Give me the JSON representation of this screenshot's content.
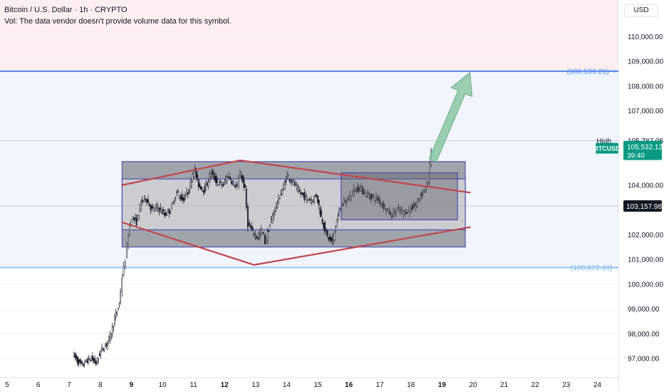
{
  "header": {
    "title": "Bitcoin / U.S. Dollar · 1h · CRYPTO",
    "volume_note": "Vol: The data vendor doesn't provide volume data for this symbol."
  },
  "currency_label": "USD",
  "colors": {
    "up": "#131722",
    "down": "#131722",
    "target_line": "#5b8def",
    "support_line": "#9ecdf2",
    "diamond": "#c1454f",
    "box_fill": "#5d6068",
    "box_border": "#3c3fa8",
    "arrow": "#8bc7a3",
    "price_tag": "#089981",
    "upper_zone": "#fdeff0",
    "lower_zone": "#f1f5fd"
  },
  "chart_data": {
    "type": "candlestick",
    "symbol": "BTCUSD",
    "ylim": [
      96500,
      111500
    ],
    "y_ticks": [
      "110,000.00",
      "109,000.00",
      "108,000.00",
      "107,000.00",
      "104,000.00",
      "102,000.00",
      "101,000.00",
      "100,000.00",
      "99,000.00",
      "98,000.00",
      "97,000.00"
    ],
    "x_ticks": [
      "5",
      "6",
      "7",
      "8",
      "9",
      "10",
      "11",
      "12",
      "13",
      "14",
      "15",
      "16",
      "17",
      "18",
      "19",
      "20",
      "21",
      "22",
      "23",
      "24"
    ],
    "x_range_days": [
      5,
      24.4
    ],
    "levels": [
      {
        "label": "(108,599.21)",
        "value": 108599.21,
        "kind": "target"
      },
      {
        "label": "(100,672.19)",
        "value": 100672.19,
        "kind": "support"
      }
    ],
    "price_labels": {
      "high_label": "High",
      "high_value": "105,787.05",
      "symbol_tag": "BTCUSD",
      "last_price": "105,532.12",
      "countdown": "39:40",
      "crosshair_price": "103,157.98"
    },
    "price_path": [
      [
        7.15,
        97200
      ],
      [
        7.3,
        96900
      ],
      [
        7.45,
        96700
      ],
      [
        7.6,
        96900
      ],
      [
        7.75,
        97000
      ],
      [
        7.9,
        96800
      ],
      [
        8.05,
        97300
      ],
      [
        8.2,
        97500
      ],
      [
        8.35,
        97900
      ],
      [
        8.5,
        98600
      ],
      [
        8.65,
        99200
      ],
      [
        8.75,
        100300
      ],
      [
        8.85,
        101000
      ],
      [
        8.95,
        102000
      ],
      [
        9.05,
        102700
      ],
      [
        9.2,
        102500
      ],
      [
        9.35,
        103300
      ],
      [
        9.5,
        103500
      ],
      [
        9.7,
        103000
      ],
      [
        9.9,
        103100
      ],
      [
        10.1,
        102800
      ],
      [
        10.3,
        103000
      ],
      [
        10.5,
        103700
      ],
      [
        10.7,
        103400
      ],
      [
        10.9,
        103800
      ],
      [
        11.05,
        104700
      ],
      [
        11.2,
        104000
      ],
      [
        11.4,
        103800
      ],
      [
        11.6,
        104500
      ],
      [
        11.8,
        104100
      ],
      [
        12.0,
        104000
      ],
      [
        12.15,
        104400
      ],
      [
        12.3,
        104100
      ],
      [
        12.45,
        103900
      ],
      [
        12.55,
        104500
      ],
      [
        12.7,
        103800
      ],
      [
        12.8,
        102400
      ],
      [
        12.95,
        102100
      ],
      [
        13.1,
        101900
      ],
      [
        13.25,
        102200
      ],
      [
        13.35,
        101700
      ],
      [
        13.5,
        102400
      ],
      [
        13.7,
        103200
      ],
      [
        13.9,
        103800
      ],
      [
        14.05,
        104400
      ],
      [
        14.25,
        104100
      ],
      [
        14.45,
        103700
      ],
      [
        14.65,
        103500
      ],
      [
        14.85,
        103400
      ],
      [
        15.0,
        103600
      ],
      [
        15.15,
        102700
      ],
      [
        15.35,
        101900
      ],
      [
        15.5,
        101700
      ],
      [
        15.65,
        102600
      ],
      [
        15.8,
        103200
      ],
      [
        16.0,
        103400
      ],
      [
        16.2,
        103800
      ],
      [
        16.4,
        103900
      ],
      [
        16.6,
        103600
      ],
      [
        16.8,
        103500
      ],
      [
        17.0,
        103400
      ],
      [
        17.2,
        103100
      ],
      [
        17.4,
        102800
      ],
      [
        17.6,
        103000
      ],
      [
        17.8,
        102900
      ],
      [
        18.0,
        103000
      ],
      [
        18.2,
        103200
      ],
      [
        18.35,
        103600
      ],
      [
        18.5,
        103900
      ],
      [
        18.6,
        104100
      ],
      [
        18.65,
        104800
      ],
      [
        18.68,
        105532
      ]
    ],
    "drawings": {
      "outer_box": {
        "x": [
          8.7,
          19.75
        ],
        "y": [
          101500,
          104950
        ]
      },
      "inner_band": {
        "x": [
          8.7,
          19.75
        ],
        "y": [
          102200,
          104250
        ]
      },
      "right_box": {
        "x": [
          15.75,
          19.5
        ],
        "y": [
          102600,
          104500
        ]
      },
      "diamond_top": {
        "day": 12.5,
        "price": 105000
      },
      "diamond_bottom": {
        "day": 12.95,
        "price": 100780
      },
      "diamond_left": {
        "day": 8.7,
        "price": 104000
      },
      "diamond_left_low": {
        "day": 8.7,
        "price": 102500
      },
      "wedge_end_high": {
        "day": 19.9,
        "price": 103700
      },
      "wedge_end_low": {
        "day": 19.9,
        "price": 102300
      },
      "arrow_from": {
        "day": 18.7,
        "price": 105000
      },
      "arrow_to": {
        "day": 19.9,
        "price": 108550
      }
    }
  }
}
